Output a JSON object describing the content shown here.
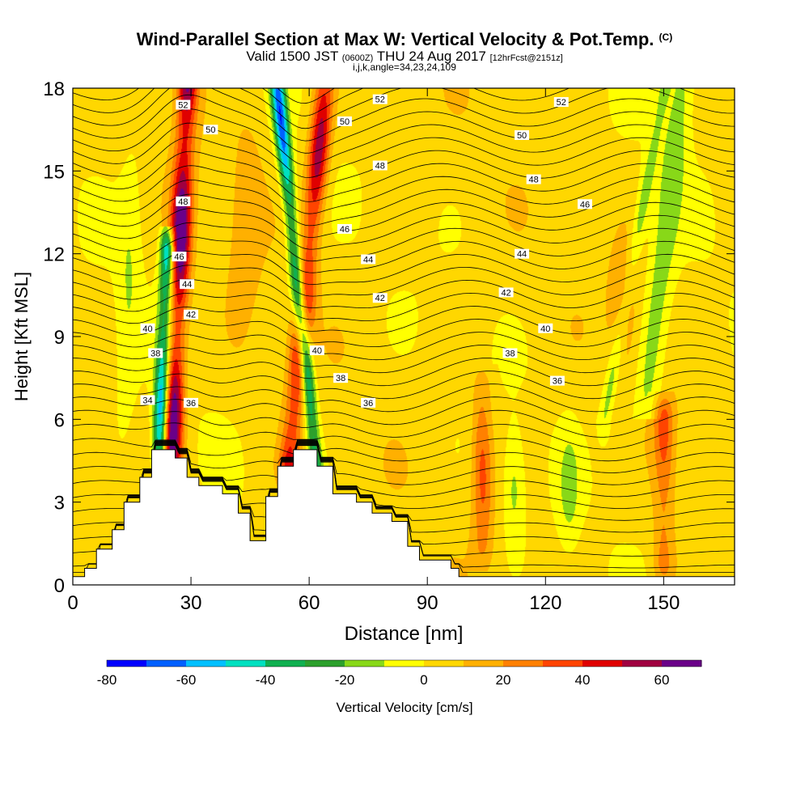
{
  "header": {
    "title": "Wind-Parallel Section at Max W: Vertical Velocity & Pot.Temp.",
    "title_suffix": "(C)",
    "valid_prefix": "Valid 1500 JST",
    "valid_utc": "(0600Z)",
    "valid_date": "THU 24 Aug 2017",
    "forecast": "[12hrFcst@2151z]",
    "grid_info": "i,j,k,angle=34,23,24,109"
  },
  "chart_data": {
    "type": "heatmap",
    "xlabel": "Distance [nm]",
    "ylabel": "Height [Kft MSL]",
    "xlim": [
      0,
      168
    ],
    "ylim": [
      0,
      18
    ],
    "x_ticks": [
      0,
      30,
      60,
      90,
      120,
      150
    ],
    "y_ticks": [
      0,
      3,
      6,
      9,
      12,
      15,
      18
    ],
    "colorbar": {
      "label": "Vertical Velocity [cm/s]",
      "ticks": [
        -80,
        -60,
        -40,
        -20,
        0,
        20,
        40,
        60
      ],
      "bins": [
        -80,
        -70,
        -60,
        -50,
        -40,
        -30,
        -20,
        -10,
        0,
        10,
        20,
        30,
        40,
        50,
        60,
        70
      ],
      "colors": [
        "#0000ff",
        "#0060ff",
        "#00c0ff",
        "#00e0c0",
        "#10b050",
        "#2ca02c",
        "#88d818",
        "#ffff00",
        "#ffd700",
        "#ffb000",
        "#ff8000",
        "#ff4400",
        "#e00000",
        "#a00040",
        "#6a0088"
      ]
    },
    "terrain": [
      [
        0,
        0.3
      ],
      [
        3,
        0.6
      ],
      [
        6,
        1.3
      ],
      [
        10,
        2.0
      ],
      [
        13,
        3.0
      ],
      [
        17,
        3.9
      ],
      [
        20,
        4.9
      ],
      [
        26,
        4.6
      ],
      [
        29,
        3.9
      ],
      [
        32,
        3.6
      ],
      [
        38,
        3.3
      ],
      [
        42,
        2.6
      ],
      [
        45,
        1.6
      ],
      [
        49,
        3.2
      ],
      [
        52,
        4.3
      ],
      [
        56,
        4.9
      ],
      [
        62,
        4.3
      ],
      [
        66,
        3.3
      ],
      [
        72,
        3.0
      ],
      [
        76,
        2.6
      ],
      [
        81,
        2.3
      ],
      [
        85,
        1.4
      ],
      [
        88,
        0.9
      ],
      [
        96,
        0.6
      ],
      [
        98,
        0.3
      ],
      [
        168,
        0.3
      ]
    ],
    "velocity_features": [
      {
        "kind": "updraft",
        "x_bottom": 25,
        "x_top": 29,
        "z_bottom": 4.5,
        "z_top": 18,
        "w_max": 70
      },
      {
        "kind": "downdraft",
        "x_bottom": 22,
        "x_top": 24,
        "z_bottom": 4.6,
        "z_top": 12,
        "w_min": -70
      },
      {
        "kind": "updraft",
        "x_bottom": 55,
        "x_top": 64,
        "z_bottom": 4.5,
        "z_top": 18,
        "w_max": 55
      },
      {
        "kind": "downdraft",
        "x_bottom": 62,
        "x_top": 52,
        "z_bottom": 4.0,
        "z_top": 18,
        "w_min": -70
      },
      {
        "kind": "updraft",
        "x_bottom": 104,
        "x_top": 104,
        "z_bottom": 1.5,
        "z_top": 7,
        "w_max": 30
      },
      {
        "kind": "updraft",
        "x_bottom": 150,
        "x_top": 150,
        "z_bottom": 1.0,
        "z_top": 6,
        "w_max": 30
      },
      {
        "kind": "downdraft",
        "x_bottom": 135,
        "x_top": 150,
        "z_bottom": 6,
        "z_top": 18,
        "w_min": -20
      }
    ],
    "isentrope_labels": [
      {
        "value": "52",
        "x": 28,
        "z": 17.4
      },
      {
        "value": "50",
        "x": 35,
        "z": 16.5
      },
      {
        "value": "48",
        "x": 28,
        "z": 13.9
      },
      {
        "value": "46",
        "x": 27,
        "z": 11.9
      },
      {
        "value": "44",
        "x": 29,
        "z": 10.9
      },
      {
        "value": "42",
        "x": 30,
        "z": 9.8
      },
      {
        "value": "40",
        "x": 19,
        "z": 9.3
      },
      {
        "value": "38",
        "x": 21,
        "z": 8.4
      },
      {
        "value": "36",
        "x": 30,
        "z": 6.6
      },
      {
        "value": "34",
        "x": 19,
        "z": 6.7
      },
      {
        "value": "52",
        "x": 78,
        "z": 17.6
      },
      {
        "value": "50",
        "x": 69,
        "z": 16.8
      },
      {
        "value": "48",
        "x": 78,
        "z": 15.2
      },
      {
        "value": "46",
        "x": 69,
        "z": 12.9
      },
      {
        "value": "44",
        "x": 75,
        "z": 11.8
      },
      {
        "value": "42",
        "x": 78,
        "z": 10.4
      },
      {
        "value": "40",
        "x": 62,
        "z": 8.5
      },
      {
        "value": "38",
        "x": 68,
        "z": 7.5
      },
      {
        "value": "36",
        "x": 75,
        "z": 6.6
      },
      {
        "value": "52",
        "x": 124,
        "z": 17.5
      },
      {
        "value": "50",
        "x": 114,
        "z": 16.3
      },
      {
        "value": "48",
        "x": 117,
        "z": 14.7
      },
      {
        "value": "46",
        "x": 130,
        "z": 13.8
      },
      {
        "value": "44",
        "x": 114,
        "z": 12.0
      },
      {
        "value": "42",
        "x": 110,
        "z": 10.6
      },
      {
        "value": "40",
        "x": 120,
        "z": 9.3
      },
      {
        "value": "38",
        "x": 111,
        "z": 8.4
      },
      {
        "value": "36",
        "x": 123,
        "z": 7.4
      }
    ]
  }
}
